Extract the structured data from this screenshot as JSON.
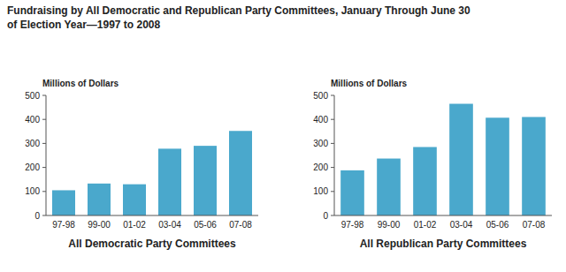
{
  "title": "Fundraising by All Democratic and Republican Party Committees, January Through June 30",
  "subtitle": "of Election Year—1997 to 2008",
  "chart_data": [
    {
      "type": "bar",
      "categories": [
        "97-98",
        "99-00",
        "01-02",
        "03-04",
        "05-06",
        "07-08"
      ],
      "values": [
        105,
        133,
        130,
        278,
        290,
        352
      ],
      "color": "#4aa8cc",
      "ylabel": "Millions of Dollars",
      "xlabel": "All Democratic Party Committees",
      "ylim": [
        0,
        500
      ],
      "yticks": [
        0,
        100,
        200,
        300,
        400,
        500
      ],
      "grid": false
    },
    {
      "type": "bar",
      "categories": [
        "97-98",
        "99-00",
        "01-02",
        "03-04",
        "05-06",
        "07-08"
      ],
      "values": [
        188,
        237,
        285,
        465,
        407,
        410
      ],
      "color": "#4aa8cc",
      "ylabel": "Millions of Dollars",
      "xlabel": "All Republican Party Committees",
      "ylim": [
        0,
        500
      ],
      "yticks": [
        0,
        100,
        200,
        300,
        400,
        500
      ],
      "grid": false
    }
  ]
}
